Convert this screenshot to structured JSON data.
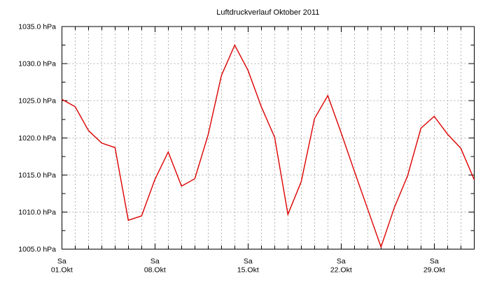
{
  "colors": {
    "line": "#dd0000",
    "grid": "#b3b3b3",
    "axis": "#000000",
    "background": "#ffffff",
    "text": "#000000"
  },
  "chart_data": {
    "type": "line",
    "title": "Luftdruckverlauf Oktober 2011",
    "xlabel": "",
    "ylabel": "",
    "unit_suffix": " hPa",
    "ylim": [
      1005.0,
      1035.0
    ],
    "y_major_step": 5.0,
    "y_minor_step": 2.5,
    "y_ticks": [
      1005.0,
      1010.0,
      1015.0,
      1020.0,
      1025.0,
      1030.0,
      1035.0
    ],
    "y_tick_decimals": 1,
    "grid": true,
    "legend": "none",
    "x_days": 32,
    "x_day_major_interval": 7,
    "x_ticks": [
      {
        "index": 0,
        "weekday": "Sa",
        "date": "01.Okt"
      },
      {
        "index": 7,
        "weekday": "Sa",
        "date": "08.Okt"
      },
      {
        "index": 14,
        "weekday": "Sa",
        "date": "15.Okt"
      },
      {
        "index": 21,
        "weekday": "Sa",
        "date": "22.Okt"
      },
      {
        "index": 28,
        "weekday": "Sa",
        "date": "29.Okt"
      }
    ],
    "series": [
      {
        "name": "Luftdruck",
        "color": "#dd0000",
        "values": [
          1025.2,
          1024.2,
          1021.0,
          1019.3,
          1018.7,
          1008.9,
          1009.5,
          1014.4,
          1018.1,
          1013.5,
          1014.5,
          1020.4,
          1028.4,
          1032.5,
          1029.1,
          1024.2,
          1020.1,
          1009.7,
          1014.1,
          1022.6,
          1025.7,
          1020.7,
          1015.5,
          1010.4,
          1005.3,
          1010.6,
          1014.9,
          1021.3,
          1022.9,
          1020.5,
          1018.6,
          1014.4
        ]
      }
    ]
  }
}
